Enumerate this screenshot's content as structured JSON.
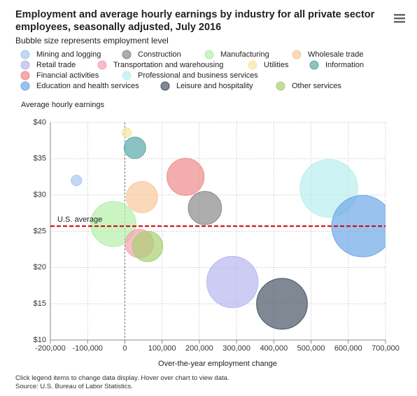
{
  "chart_data": {
    "type": "bubble",
    "title": "Employment and average hourly earnings by industry for all private sector employees, seasonally adjusted, July 2016",
    "subtitle": "Bubble size represents employment level",
    "x_label": "Over-the-year employment change",
    "y_label": "Average hourly earnings",
    "notes": [
      "Click legend items to change data display. Hover over chart to view data.",
      "Source: U.S. Bureau of Labor Statistics."
    ],
    "xlim": [
      -200000,
      700000
    ],
    "ylim": [
      10,
      40
    ],
    "xticks": [
      {
        "value": -200000,
        "label": "-200,000"
      },
      {
        "value": -100000,
        "label": "-100,000"
      },
      0,
      {
        "value": 100000,
        "label": "100,000"
      },
      {
        "value": 200000,
        "label": "200,000"
      },
      {
        "value": 300000,
        "label": "300,000"
      },
      {
        "value": 400000,
        "label": "400,000"
      },
      {
        "value": 500000,
        "label": "500,000"
      },
      {
        "value": 600000,
        "label": "600,000"
      },
      {
        "value": 700000,
        "label": "700,000"
      }
    ],
    "yticks": [
      {
        "value": 10,
        "label": "$10"
      },
      {
        "value": 15,
        "label": "$15"
      },
      {
        "value": 20,
        "label": "$20"
      },
      {
        "value": 25,
        "label": "$25"
      },
      {
        "value": 30,
        "label": "$30"
      },
      {
        "value": 35,
        "label": "$35"
      },
      {
        "value": 40,
        "label": "$40"
      }
    ],
    "grid": true,
    "reference_line": {
      "value": 25.7,
      "label": "U.S. average",
      "color": "#cc0000"
    },
    "series": [
      {
        "name": "Mining and logging",
        "color": "#a6c8ef",
        "x": -130000,
        "y": 32.0,
        "size": 680
      },
      {
        "name": "Construction",
        "color": "#8a8a8a",
        "x": 215000,
        "y": 28.2,
        "size": 6700
      },
      {
        "name": "Manufacturing",
        "color": "#b3f0a8",
        "x": -31000,
        "y": 26.0,
        "size": 12300
      },
      {
        "name": "Wholesale trade",
        "color": "#f8c89c",
        "x": 46000,
        "y": 29.7,
        "size": 5900
      },
      {
        "name": "Retail trade",
        "color": "#b8b8f0",
        "x": 289000,
        "y": 18.0,
        "size": 15900
      },
      {
        "name": "Transportation and warehousing",
        "color": "#f7a0b0",
        "x": 39000,
        "y": 23.3,
        "size": 4900
      },
      {
        "name": "Utilities",
        "color": "#f5e6a0",
        "x": 5000,
        "y": 38.6,
        "size": 550
      },
      {
        "name": "Information",
        "color": "#5aaaa8",
        "x": 27000,
        "y": 36.5,
        "size": 2800
      },
      {
        "name": "Financial activities",
        "color": "#f08a8a",
        "x": 163000,
        "y": 32.5,
        "size": 8300
      },
      {
        "name": "Professional and business services",
        "color": "#b8f0ec",
        "x": 548000,
        "y": 30.9,
        "size": 20200
      },
      {
        "name": "Education and health services",
        "color": "#6fa8e8",
        "x": 638000,
        "y": 25.7,
        "size": 22800
      },
      {
        "name": "Leisure and hospitality",
        "color": "#4a5565",
        "x": 422000,
        "y": 15.0,
        "size": 15600
      },
      {
        "name": "Other services",
        "color": "#a8d070",
        "x": 61000,
        "y": 22.9,
        "size": 5600
      }
    ]
  }
}
